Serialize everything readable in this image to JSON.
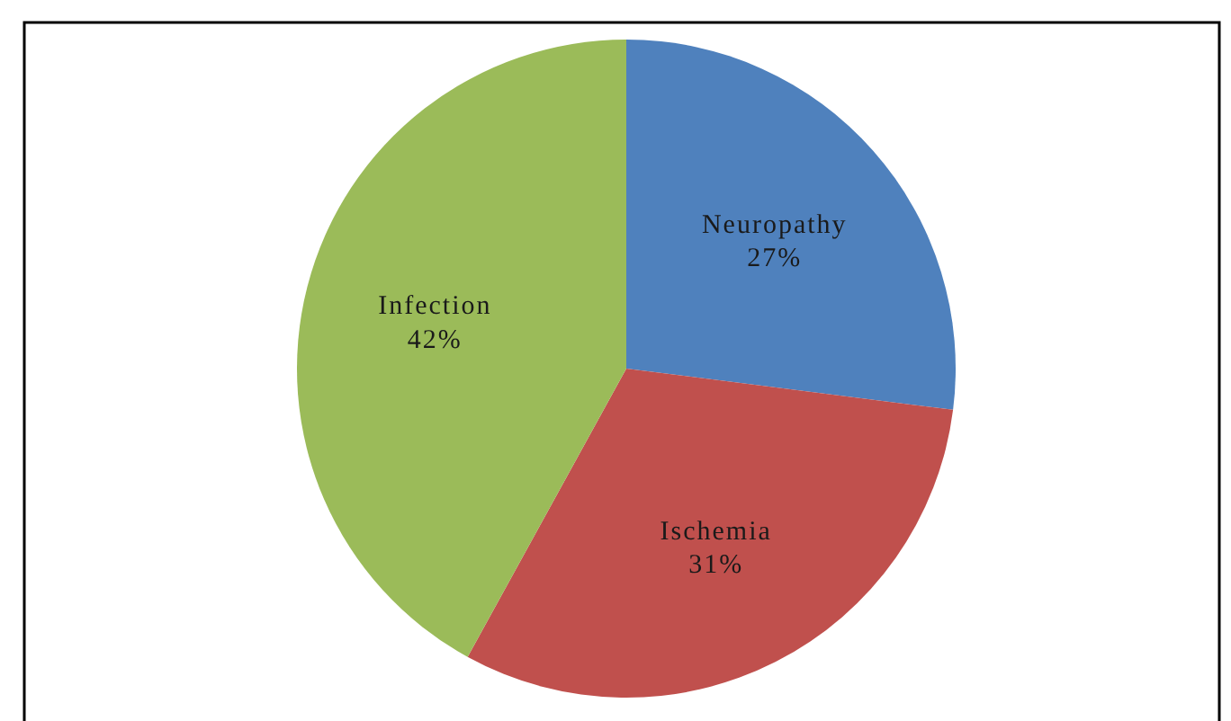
{
  "chart_data": {
    "type": "pie",
    "categories": [
      "Neuropathy",
      "Ischemia",
      "Infection"
    ],
    "values": [
      27,
      31,
      42
    ],
    "value_labels": [
      "27%",
      "31%",
      "42%"
    ],
    "colors": [
      "#4f81bd",
      "#c0504d",
      "#9bbb59"
    ]
  }
}
